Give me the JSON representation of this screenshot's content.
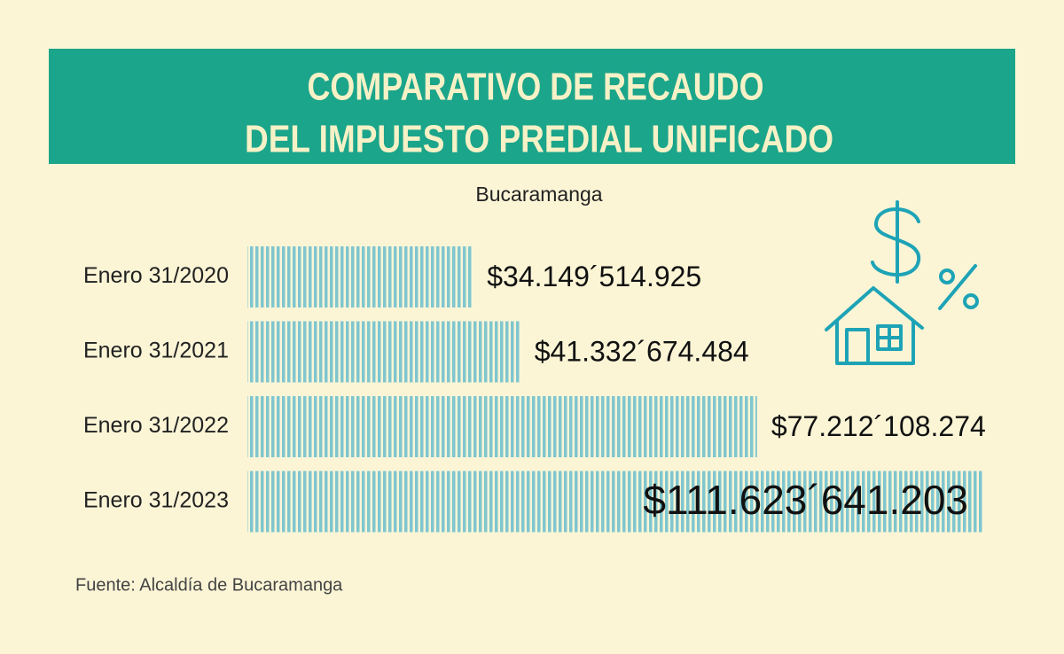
{
  "chart_data": {
    "type": "bar",
    "orientation": "horizontal",
    "title": [
      "COMPARATIVO DE RECAUDO",
      "DEL IMPUESTO PREDIAL UNIFICADO"
    ],
    "subtitle": "Bucaramanga",
    "source": "Fuente: Alcaldía de Bucaramanga",
    "categories": [
      "Enero 31/2020",
      "Enero 31/2021",
      "Enero 31/2022",
      "Enero 31/2023"
    ],
    "values": [
      34149514925,
      41332674484,
      77212108274,
      111623641203
    ],
    "value_labels": [
      "$34.149´514.925",
      "$41.332´674.484",
      "$77.212´108.274",
      "$111.623´641.203"
    ],
    "color": "#7fc6cf"
  }
}
